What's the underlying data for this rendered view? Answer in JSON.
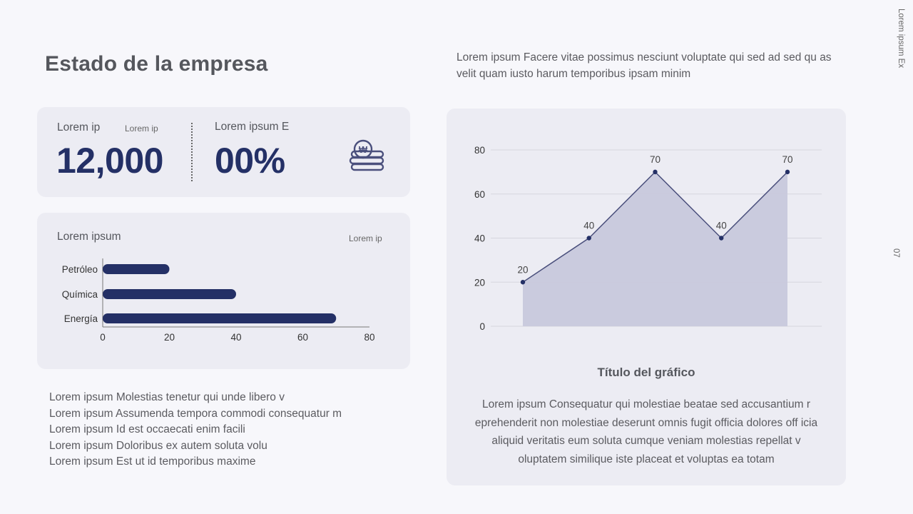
{
  "page": {
    "title": "Estado de la empresa",
    "intro": "Lorem ipsum Facere vitae possimus nesciunt voluptate qui sed ad sed qu as velit quam iusto harum temporibus ipsam minim",
    "side_label": "Lorem ipsum Ex",
    "page_number": "07"
  },
  "kpi": {
    "left_label": "Lorem ip",
    "left_sublabel": "Lorem ip",
    "left_value": "12,000",
    "right_label": "Lorem ipsum E",
    "right_value": "00%",
    "icon": "coins-won-icon"
  },
  "bars": {
    "title": "Lorem ipsum",
    "sublabel": "Lorem ip"
  },
  "bullets": [
    "Lorem ipsum Molestias tenetur qui unde libero v",
    "Lorem ipsum Assumenda tempora commodi consequatur m",
    "Lorem ipsum Id est occaecati enim facili",
    "Lorem ipsum Doloribus ex autem soluta volu",
    "Lorem ipsum Est ut id temporibus maxime"
  ],
  "chart_panel": {
    "title": "Título del gráfico",
    "description": "Lorem ipsum Consequatur qui molestiae beatae sed accusantium r eprehenderit non molestiae deserunt omnis fugit officia dolores off icia aliquid veritatis eum soluta cumque veniam molestias repellat v oluptatem similique iste placeat et voluptas ea totam"
  },
  "colors": {
    "accent": "#243066",
    "area_fill": "#c8c9dc",
    "area_line": "#4a4f7c",
    "grid": "#d6d6de"
  },
  "chart_data": [
    {
      "type": "bar",
      "orientation": "horizontal",
      "categories": [
        "Petróleo",
        "Química",
        "Energía"
      ],
      "values": [
        20,
        40,
        70
      ],
      "xlim": [
        0,
        80
      ],
      "xticks": [
        0,
        20,
        40,
        60,
        80
      ],
      "color": "#243066"
    },
    {
      "type": "area",
      "values": [
        20,
        40,
        70,
        40,
        70
      ],
      "data_labels": [
        "20",
        "40",
        "70",
        "40",
        "70"
      ],
      "ylim": [
        0,
        80
      ],
      "yticks": [
        0,
        20,
        40,
        60,
        80
      ],
      "grid": true
    }
  ]
}
